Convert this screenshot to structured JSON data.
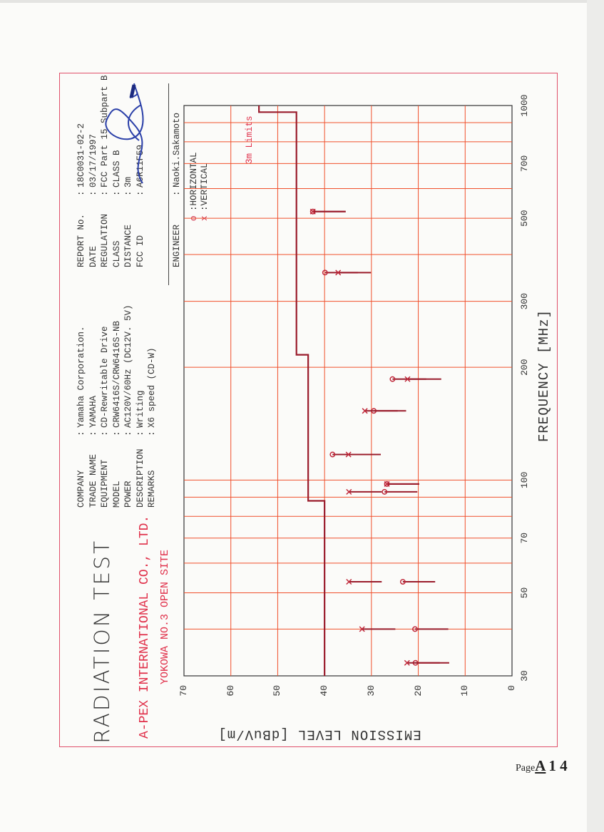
{
  "header": {
    "title": "RADIATION TEST",
    "lab": "A-PEX INTERNATIONAL CO., LTD.",
    "site": "YOKOWA NO.3 OPEN SITE"
  },
  "info_left": [
    {
      "label": "COMPANY",
      "value": "Yamaha Corporation."
    },
    {
      "label": "TRADE NAME",
      "value": "YAMAHA"
    },
    {
      "label": "EQUIPMENT",
      "value": "CD-Rewritable Drive"
    },
    {
      "label": "MODEL",
      "value": "CRW6416S/CRW6416S-NB"
    },
    {
      "label": "POWER",
      "value": "AC120V/60Hz (DC12V. 5V)"
    },
    {
      "label": "DESCRIPTION",
      "value": "Writing"
    },
    {
      "label": "REMARKS",
      "value": "X6 speed (CD-W)"
    }
  ],
  "info_right": [
    {
      "label": "REPORT No.",
      "value": "18C0031-02-2"
    },
    {
      "label": "DATE",
      "value": "03/17/1997"
    },
    {
      "label": "REGULATION",
      "value": "FCC Part 15 Subpart B"
    },
    {
      "label": "CLASS",
      "value": "CLASS B"
    },
    {
      "label": "DISTANCE",
      "value": "3m"
    },
    {
      "label": "FCC ID",
      "value": "A6R11F59"
    }
  ],
  "engineer": {
    "label": "ENGINEER",
    "value": "Naoki.Sakamoto"
  },
  "separator": ":",
  "legend": [
    {
      "marker": "o",
      "label": ":HORIZONTAL"
    },
    {
      "marker": "x",
      "label": ":VERTICAL"
    }
  ],
  "page": {
    "prefix": "Page",
    "letter": "A",
    "number": "1 4"
  },
  "colors": {
    "grid": "#f0502c",
    "marks": "#9a1c2c",
    "accent": "#e0304a",
    "signature": "#2a3fa8"
  },
  "chart_data": {
    "type": "scatter",
    "title": "RADIATION TEST",
    "xlabel": "FREQUENCY [MHz]",
    "ylabel": "EMISSION LEVEL [dBuV/m]",
    "xscale": "log",
    "xlim": [
      30,
      1000
    ],
    "ylim": [
      0,
      70
    ],
    "xticks": [
      30,
      50,
      70,
      100,
      200,
      300,
      500,
      700,
      1000
    ],
    "yticks": [
      0,
      10,
      20,
      30,
      40,
      50,
      60,
      70
    ],
    "grid": true,
    "limit": {
      "name": "3m Limits",
      "steps": [
        [
          30,
          40
        ],
        [
          88,
          40
        ],
        [
          88,
          43.5
        ],
        [
          216,
          43.5
        ],
        [
          216,
          46
        ],
        [
          960,
          46
        ],
        [
          960,
          54
        ],
        [
          1000,
          54
        ]
      ]
    },
    "series": [
      {
        "name": "HORIZONTAL",
        "marker": "o",
        "points": [
          {
            "freq": 32.5,
            "level": 20.6,
            "reading": 13.4
          },
          {
            "freq": 40,
            "level": 20.7,
            "reading": 13.6
          },
          {
            "freq": 53.5,
            "level": 23.3,
            "reading": 16.4
          },
          {
            "freq": 93,
            "level": 27.2,
            "reading": 20.2
          },
          {
            "freq": 97.6,
            "level": 26.7,
            "reading": 19.8
          },
          {
            "freq": 117,
            "level": 38.3,
            "reading": 31.3
          },
          {
            "freq": 153,
            "level": 29.5,
            "reading": 22.6
          },
          {
            "freq": 186,
            "level": 25.5,
            "reading": 18.3
          },
          {
            "freq": 358,
            "level": 39.9,
            "reading": 32.9
          },
          {
            "freq": 521,
            "level": 42.5,
            "reading": 35.5
          }
        ]
      },
      {
        "name": "VERTICAL",
        "marker": "x",
        "points": [
          {
            "freq": 32.5,
            "level": 22.4,
            "reading": 15.4
          },
          {
            "freq": 40,
            "level": 32.0,
            "reading": 24.9
          },
          {
            "freq": 53.5,
            "level": 34.8,
            "reading": 27.8
          },
          {
            "freq": 93,
            "level": 34.8,
            "reading": 27.8
          },
          {
            "freq": 97.6,
            "level": 26.7,
            "reading": 19.8
          },
          {
            "freq": 117,
            "level": 34.9,
            "reading": 28.0
          },
          {
            "freq": 153,
            "level": 31.4,
            "reading": 24.4
          },
          {
            "freq": 186,
            "level": 22.3,
            "reading": 15.1
          },
          {
            "freq": 358,
            "level": 37.1,
            "reading": 30.1
          },
          {
            "freq": 521,
            "level": 42.5,
            "reading": 35.5
          }
        ]
      }
    ]
  }
}
